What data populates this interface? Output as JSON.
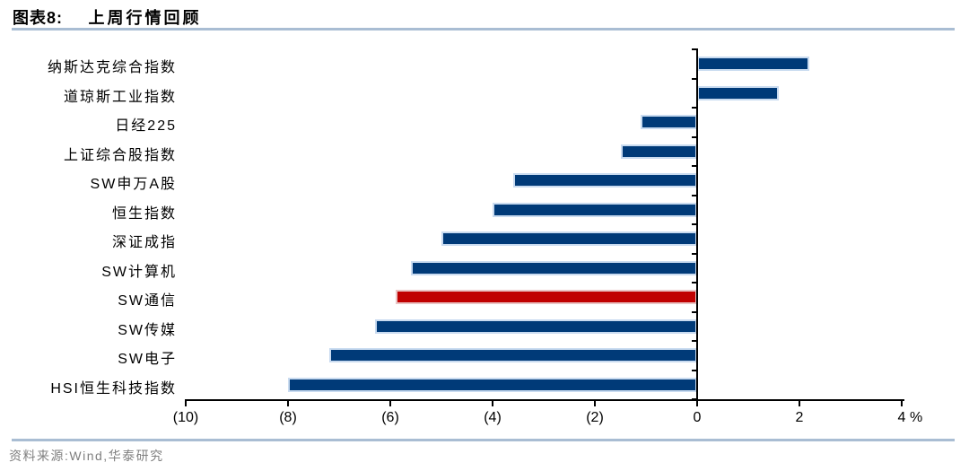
{
  "header": {
    "figure_label": "图表8:",
    "title": "上周行情回顾"
  },
  "footer": {
    "source": "资料来源:Wind,华泰研究"
  },
  "colors": {
    "bar_fill": "#003A78",
    "bar_border": "#C9DBF0",
    "highlight_fill": "#C00000",
    "highlight_border": "#E9C4C4",
    "axis": "#000000",
    "rule": "#A9BDD3",
    "footer_text": "#7F7F7F"
  },
  "chart_data": {
    "type": "bar",
    "orientation": "horizontal",
    "title": "上周行情回顾",
    "unit": "%",
    "categories": [
      "纳斯达克综合指数",
      "道琼斯工业指数",
      "日经225",
      "上证综合股指数",
      "SW申万A股",
      "恒生指数",
      "深证成指",
      "SW计算机",
      "SW通信",
      "SW传媒",
      "SW电子",
      "HSI恒生科技指数"
    ],
    "values": [
      2.2,
      1.6,
      -1.1,
      -1.5,
      -3.6,
      -4.0,
      -5.0,
      -5.6,
      -5.9,
      -6.3,
      -7.2,
      -8.0
    ],
    "highlight_index": 8,
    "xlim": [
      -10,
      4
    ],
    "x_ticks": [
      -10,
      -8,
      -6,
      -4,
      -2,
      0,
      2,
      4
    ],
    "x_tick_labels": [
      "(10)",
      "(8)",
      "(6)",
      "(4)",
      "(2)",
      "0",
      "2",
      "4"
    ],
    "grid": false,
    "legend": false
  }
}
